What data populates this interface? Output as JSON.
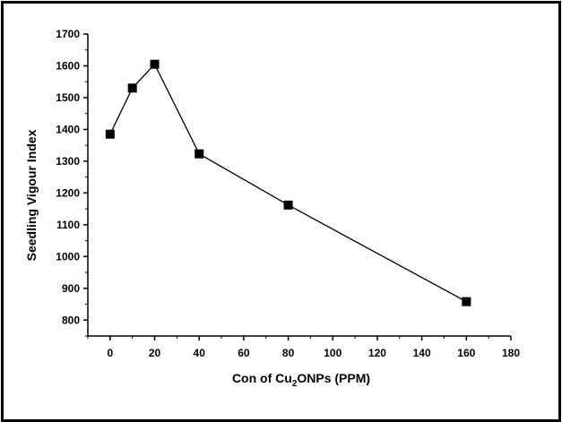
{
  "chart_data": {
    "type": "line",
    "xlabel": "Con of Cu2ONPs (PPM)",
    "xlabel_parts": {
      "pre": "Con of Cu",
      "sub": "2",
      "post": "ONPs (PPM)"
    },
    "ylabel": "Seedling Vigour Index",
    "x": [
      0,
      10,
      20,
      40,
      80,
      160
    ],
    "series": [
      {
        "values": [
          1385,
          1530,
          1605,
          1323,
          1162,
          858
        ]
      }
    ],
    "xlim": [
      -10,
      180
    ],
    "ylim": [
      750,
      1700
    ],
    "xticks": [
      0,
      20,
      40,
      60,
      80,
      100,
      120,
      140,
      160,
      180
    ],
    "yticks": [
      800,
      900,
      1000,
      1100,
      1200,
      1300,
      1400,
      1500,
      1600,
      1700
    ],
    "marker": "square",
    "line_color": "#000000",
    "grid": false,
    "legend": "none"
  }
}
